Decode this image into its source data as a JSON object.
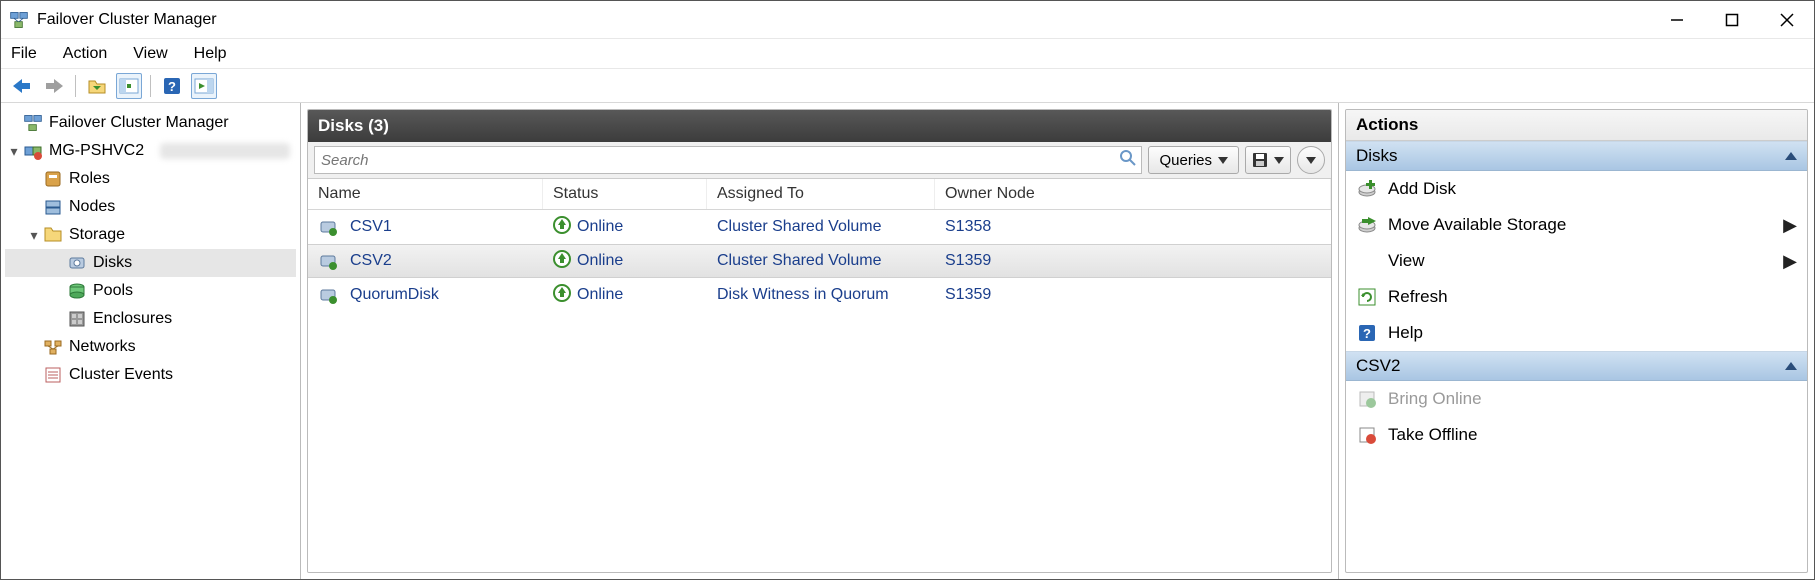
{
  "window": {
    "title": "Failover Cluster Manager"
  },
  "menu": {
    "file": "File",
    "action": "Action",
    "view": "View",
    "help": "Help"
  },
  "tree": {
    "root": "Failover Cluster Manager",
    "cluster": "MG-PSHVC2",
    "roles": "Roles",
    "nodes": "Nodes",
    "storage": "Storage",
    "disks": "Disks",
    "pools": "Pools",
    "enclosures": "Enclosures",
    "networks": "Networks",
    "events": "Cluster Events"
  },
  "center": {
    "header": "Disks (3)",
    "search_placeholder": "Search",
    "queries_btn": "Queries",
    "columns": {
      "name": "Name",
      "status": "Status",
      "assigned": "Assigned To",
      "owner": "Owner Node"
    },
    "rows": [
      {
        "name": "CSV1",
        "status": "Online",
        "assigned": "Cluster Shared Volume",
        "owner": "S1358"
      },
      {
        "name": "CSV2",
        "status": "Online",
        "assigned": "Cluster Shared Volume",
        "owner": "S1359"
      },
      {
        "name": "QuorumDisk",
        "status": "Online",
        "assigned": "Disk Witness in Quorum",
        "owner": "S1359"
      }
    ],
    "selected_index": 1
  },
  "actions": {
    "title": "Actions",
    "sections": [
      {
        "header": "Disks",
        "items": [
          {
            "label": "Add Disk",
            "icon": "add-disk"
          },
          {
            "label": "Move Available Storage",
            "icon": "move-storage",
            "submenu": true
          },
          {
            "label": "View",
            "icon": "blank",
            "submenu": true
          },
          {
            "label": "Refresh",
            "icon": "refresh"
          },
          {
            "label": "Help",
            "icon": "help"
          }
        ]
      },
      {
        "header": "CSV2",
        "items": [
          {
            "label": "Bring Online",
            "icon": "bring-online",
            "disabled": true
          },
          {
            "label": "Take Offline",
            "icon": "take-offline"
          }
        ]
      }
    ]
  },
  "colors": {
    "link": "#1a3e8c",
    "section_bg_top": "#d0e1f2",
    "section_bg_bot": "#a9c6e3",
    "center_hdr_top": "#585858",
    "center_hdr_bot": "#3c3c3c"
  }
}
